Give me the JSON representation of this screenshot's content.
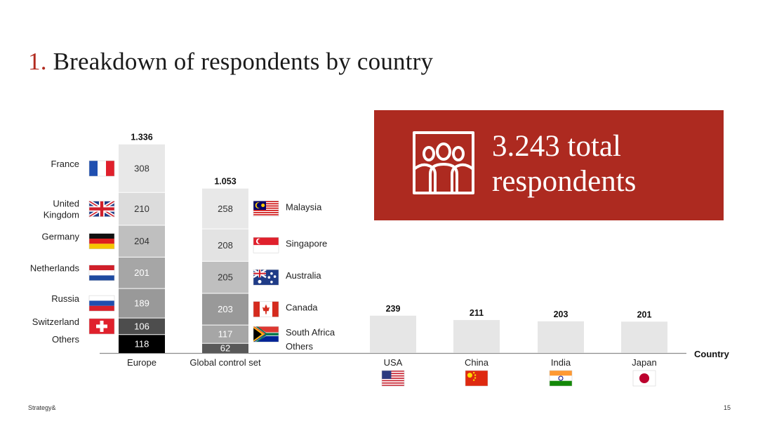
{
  "header": {
    "title_number": "1.",
    "title_text": "Breakdown of respondents by country"
  },
  "callout": {
    "line1": "3.243 total",
    "line2": "respondents",
    "icon": "people-icon"
  },
  "footer": {
    "brand": "Strategy&",
    "page": "15"
  },
  "colors": {
    "accent": "#ad2a20",
    "light_bar": "#e6e6e6"
  },
  "chart_data": {
    "type": "bar",
    "xlabel": "Country",
    "stacked_bars": [
      {
        "category": "Europe",
        "total_label": "1.336",
        "segments": [
          {
            "name": "Others",
            "value": 118,
            "flag": "none"
          },
          {
            "name": "Switzerland",
            "value": 106,
            "flag": "swiss-flag-icon"
          },
          {
            "name": "Russia",
            "value": 189,
            "flag": "russia-flag-icon"
          },
          {
            "name": "Netherlands",
            "value": 201,
            "flag": "netherlands-flag-icon"
          },
          {
            "name": "Germany",
            "value": 204,
            "flag": "germany-flag-icon"
          },
          {
            "name": "United Kingdom",
            "value": 210,
            "flag": "uk-flag-icon"
          },
          {
            "name": "France",
            "value": 308,
            "flag": "france-flag-icon"
          }
        ]
      },
      {
        "category": "Global control set",
        "total_label": "1.053",
        "segments": [
          {
            "name": "Others",
            "value": 62,
            "flag": "none"
          },
          {
            "name": "South Africa",
            "value": 117,
            "flag": "south-africa-flag-icon"
          },
          {
            "name": "Canada",
            "value": 203,
            "flag": "canada-flag-icon"
          },
          {
            "name": "Australia",
            "value": 205,
            "flag": "australia-flag-icon"
          },
          {
            "name": "Singapore",
            "value": 208,
            "flag": "singapore-flag-icon"
          },
          {
            "name": "Malaysia",
            "value": 258,
            "flag": "malaysia-flag-icon"
          }
        ]
      }
    ],
    "single_bars": [
      {
        "category": "USA",
        "value": 239,
        "value_label": "239",
        "flag": "usa-flag-icon"
      },
      {
        "category": "China",
        "value": 211,
        "value_label": "211",
        "flag": "china-flag-icon"
      },
      {
        "category": "India",
        "value": 203,
        "value_label": "203",
        "flag": "india-flag-icon"
      },
      {
        "category": "Japan",
        "value": 201,
        "value_label": "201",
        "flag": "japan-flag-icon"
      }
    ],
    "grid": false,
    "legend": "none"
  }
}
